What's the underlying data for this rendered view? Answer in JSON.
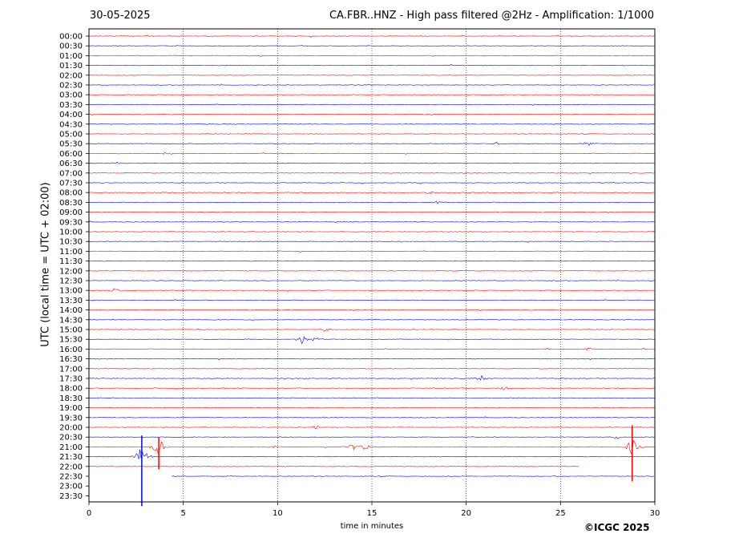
{
  "header": {
    "date": "30-05-2025",
    "title": "CA.FBR..HNZ - High pass filtered @2Hz - Amplification: 1/1000"
  },
  "footer": {
    "copyright": "©ICGC 2025"
  },
  "chart_data": {
    "type": "line",
    "title": "CA.FBR..HNZ - High pass filtered @2Hz - Amplification: 1/1000",
    "xlabel": "time in minutes",
    "ylabel": "UTC (local time = UTC + 02:00)",
    "xlim": [
      0,
      30
    ],
    "xticks": [
      0,
      5,
      10,
      15,
      20,
      25,
      30
    ],
    "vertical_gridlines": [
      5,
      10,
      15,
      20,
      25
    ],
    "grid": "dotted vertical",
    "trace_colors": [
      "#ff0000",
      "#0000ff"
    ],
    "rows": [
      "00:00",
      "00:30",
      "01:00",
      "01:30",
      "02:00",
      "02:30",
      "03:00",
      "03:30",
      "04:00",
      "04:30",
      "05:00",
      "05:30",
      "06:00",
      "06:30",
      "07:00",
      "07:30",
      "08:00",
      "08:30",
      "09:00",
      "09:30",
      "10:00",
      "10:30",
      "11:00",
      "11:30",
      "12:00",
      "12:30",
      "13:00",
      "13:30",
      "14:00",
      "14:30",
      "15:00",
      "15:30",
      "16:00",
      "16:30",
      "17:00",
      "17:30",
      "18:00",
      "18:30",
      "19:00",
      "19:30",
      "20:00",
      "20:30",
      "21:00",
      "21:30",
      "22:00",
      "22:30",
      "23:00",
      "23:30"
    ],
    "events": [
      {
        "row": "05:30",
        "minute": 26.5,
        "amp": 0.5
      },
      {
        "row": "05:30",
        "minute": 21.6,
        "amp": 0.3
      },
      {
        "row": "06:00",
        "minute": 4.2,
        "amp": 0.35
      },
      {
        "row": "06:30",
        "minute": 1.5,
        "amp": 0.3
      },
      {
        "row": "07:30",
        "minute": 17.6,
        "amp": 0.3
      },
      {
        "row": "08:00",
        "minute": 18.0,
        "amp": 0.3
      },
      {
        "row": "08:30",
        "minute": 18.5,
        "amp": 0.3
      },
      {
        "row": "13:00",
        "minute": 1.4,
        "amp": 0.5
      },
      {
        "row": "15:00",
        "minute": 12.5,
        "amp": 0.4
      },
      {
        "row": "15:30",
        "minute": 11.3,
        "amp": 1.0
      },
      {
        "row": "15:30",
        "minute": 12.0,
        "amp": 0.6
      },
      {
        "row": "16:00",
        "minute": 26.5,
        "amp": 0.35
      },
      {
        "row": "17:30",
        "minute": 20.8,
        "amp": 0.5
      },
      {
        "row": "18:00",
        "minute": 22.0,
        "amp": 0.4
      },
      {
        "row": "20:00",
        "minute": 12.0,
        "amp": 0.35
      },
      {
        "row": "20:30",
        "minute": 28.0,
        "amp": 0.35
      },
      {
        "row": "21:00",
        "minute": 14.0,
        "amp": 0.6
      },
      {
        "row": "21:00",
        "minute": 14.6,
        "amp": 0.7
      },
      {
        "row": "21:00",
        "minute": 9.7,
        "amp": 0.45
      },
      {
        "row": "21:00",
        "minute": 3.7,
        "amp": 2.0
      },
      {
        "row": "21:00",
        "minute": 28.8,
        "amp": 1.6
      },
      {
        "row": "21:30",
        "minute": 2.8,
        "amp": 2.2
      }
    ],
    "data_end": {
      "row": "22:00",
      "minute": 26.0
    },
    "partial_gaps": [
      {
        "row": "22:30",
        "from": 0,
        "to": 4.4
      }
    ]
  }
}
